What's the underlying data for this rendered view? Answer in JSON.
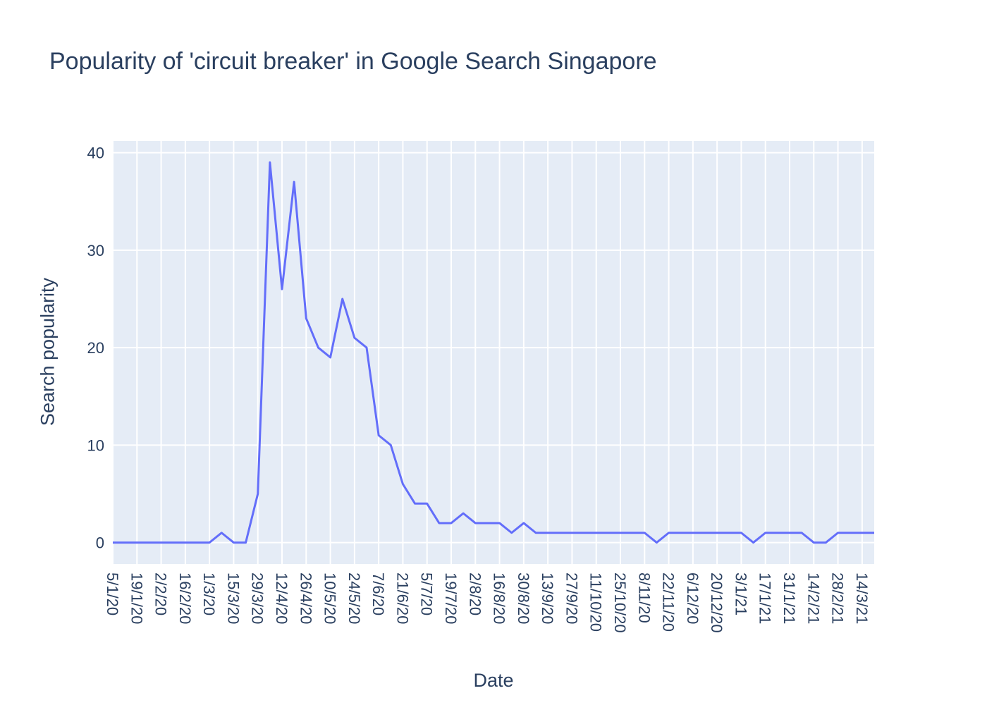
{
  "chart_data": {
    "type": "line",
    "title": "Popularity of 'circuit breaker' in Google Search Singapore",
    "xlabel": "Date",
    "ylabel": "Search popularity",
    "x_tick_labels": [
      "5/1/20",
      "19/1/20",
      "2/2/20",
      "16/2/20",
      "1/3/20",
      "15/3/20",
      "29/3/20",
      "12/4/20",
      "26/4/20",
      "10/5/20",
      "24/5/20",
      "7/6/20",
      "21/6/20",
      "5/7/20",
      "19/7/20",
      "2/8/20",
      "16/8/20",
      "30/8/20",
      "13/9/20",
      "27/9/20",
      "11/10/20",
      "25/10/20",
      "8/11/20",
      "22/11/20",
      "6/12/20",
      "20/12/20",
      "3/1/21",
      "17/1/21",
      "31/1/21",
      "14/2/21",
      "28/2/21",
      "14/3/21"
    ],
    "x": [
      "5/1/20",
      "12/1/20",
      "19/1/20",
      "26/1/20",
      "2/2/20",
      "9/2/20",
      "16/2/20",
      "23/2/20",
      "1/3/20",
      "8/3/20",
      "15/3/20",
      "22/3/20",
      "29/3/20",
      "5/4/20",
      "12/4/20",
      "19/4/20",
      "26/4/20",
      "3/5/20",
      "10/5/20",
      "17/5/20",
      "24/5/20",
      "31/5/20",
      "7/6/20",
      "14/6/20",
      "21/6/20",
      "28/6/20",
      "5/7/20",
      "12/7/20",
      "19/7/20",
      "26/7/20",
      "2/8/20",
      "9/8/20",
      "16/8/20",
      "23/8/20",
      "30/8/20",
      "6/9/20",
      "13/9/20",
      "20/9/20",
      "27/9/20",
      "4/10/20",
      "11/10/20",
      "18/10/20",
      "25/10/20",
      "1/11/20",
      "8/11/20",
      "15/11/20",
      "22/11/20",
      "29/11/20",
      "6/12/20",
      "13/12/20",
      "20/12/20",
      "27/12/20",
      "3/1/21",
      "10/1/21",
      "17/1/21",
      "24/1/21",
      "31/1/21",
      "7/2/21",
      "14/2/21",
      "21/2/21",
      "28/2/21",
      "7/3/21",
      "14/3/21",
      "21/3/21"
    ],
    "series": [
      {
        "color": "#636efa",
        "values": [
          0,
          0,
          0,
          0,
          0,
          0,
          0,
          0,
          0,
          1,
          0,
          0,
          5,
          39,
          26,
          37,
          23,
          20,
          19,
          25,
          21,
          20,
          11,
          10,
          6,
          4,
          4,
          2,
          2,
          3,
          2,
          2,
          2,
          1,
          2,
          1,
          1,
          1,
          1,
          1,
          1,
          1,
          1,
          1,
          1,
          0,
          1,
          1,
          1,
          1,
          1,
          1,
          1,
          0,
          1,
          1,
          1,
          1,
          0,
          0,
          1,
          1,
          1,
          1
        ]
      }
    ],
    "y_ticks": [
      0,
      10,
      20,
      30,
      40
    ],
    "ylim": [
      -2.2,
      41.2
    ],
    "grid": true,
    "plot_background": "#e5ecf6",
    "grid_color": "#ffffff"
  }
}
